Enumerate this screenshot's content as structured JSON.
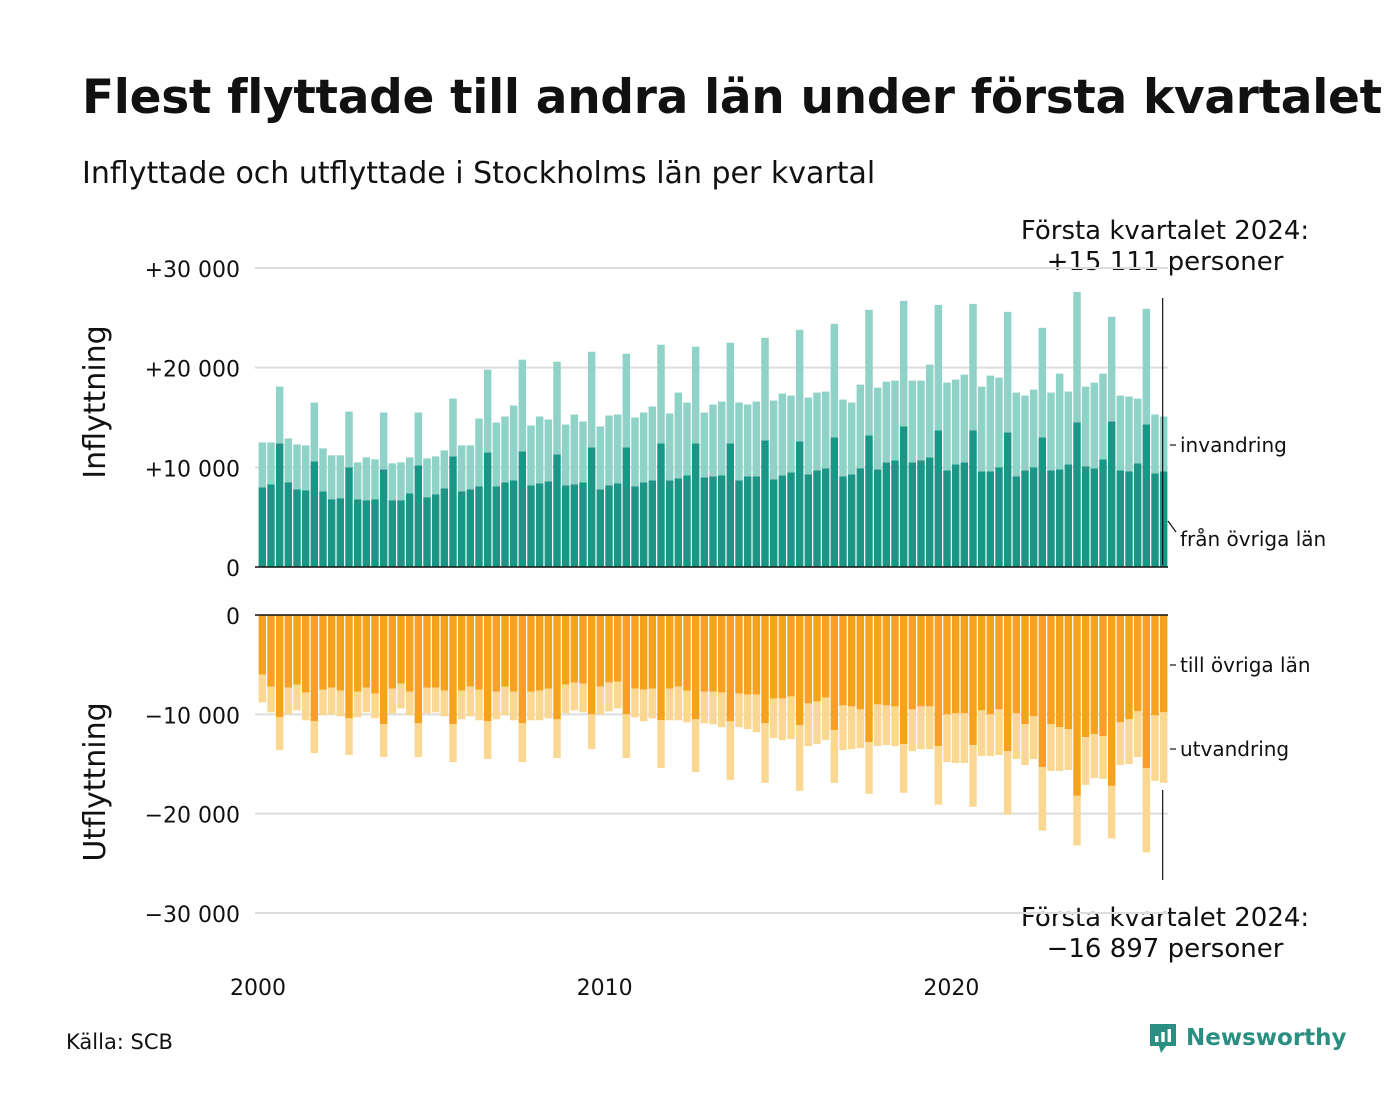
{
  "header": {
    "title": "Flest flyttade till andra län under första kvartalet",
    "subtitle": "Inflyttade och utflyttade i Stockholms län per kvartal"
  },
  "callouts": {
    "top_line1": "Första kvartalet 2024:",
    "top_line2": "+15 111 personer",
    "bottom_line1": "Första kvartalet 2024:",
    "bottom_line2": "−16 897 personer"
  },
  "footer": {
    "source": "Källa: SCB",
    "brand": "Newsworthy"
  },
  "colors": {
    "domestic_in": "#1a9586",
    "immigration": "#8fd3c8",
    "domestic_out": "#f6a21e",
    "emigration": "#fbd892",
    "grid": "#dddddd",
    "brand": "#2a8f82"
  },
  "icons": {
    "brand_logo": "newsworthy-logo-icon"
  },
  "chart_data": {
    "type": "bar",
    "stacked": true,
    "x_label": "",
    "x_ticks": [
      "2000",
      "2010",
      "2020"
    ],
    "x_range": [
      "2000 Q1",
      "2024 Q1"
    ],
    "grid": true,
    "panels": [
      {
        "name": "Inflyttning",
        "ylim": [
          0,
          30000
        ],
        "y_ticks": [
          0,
          10000,
          20000,
          30000
        ],
        "y_tick_labels": [
          "0",
          "+10 000",
          "+20 000",
          "+30 000"
        ],
        "end_labels": [
          "invandring",
          "från övriga län"
        ],
        "series": [
          {
            "name": "från övriga län",
            "color_key": "domestic_in",
            "values": [
              8000,
              8300,
              12400,
              8500,
              7800,
              7700,
              10600,
              7600,
              6800,
              6900,
              10000,
              6800,
              6700,
              6800,
              9800,
              6700,
              6700,
              7400,
              10200,
              7000,
              7300,
              7900,
              11100,
              7600,
              7800,
              8100,
              11500,
              8100,
              8500,
              8700,
              11600,
              8200,
              8400,
              8600,
              11300,
              8200,
              8300,
              8500,
              12000,
              7800,
              8200,
              8400,
              12000,
              8100,
              8500,
              8700,
              12400,
              8700,
              8900,
              9200,
              12400,
              9000,
              9100,
              9200,
              12400,
              8700,
              9100,
              9100,
              12700,
              8800,
              9200,
              9500,
              12600,
              9300,
              9700,
              9900,
              13000,
              9100,
              9300,
              9900,
              13200,
              9800,
              10500,
              10700,
              14100,
              10500,
              10700,
              11000,
              13700,
              9700,
              10300,
              10500,
              13700,
              9600,
              9600,
              10000,
              13500,
              9100,
              9700,
              10000,
              13000,
              9700,
              9800,
              10300,
              14500,
              10100,
              9900,
              10800,
              14600,
              9700,
              9600,
              10400,
              14300,
              9400,
              9600
            ],
            "annotation": "from 2000 Q1 to 2024 Q1 (about 97 quarters)"
          },
          {
            "name": "invandring",
            "color_key": "immigration",
            "values": [
              4500,
              4200,
              5700,
              4400,
              4500,
              4500,
              5900,
              4300,
              4400,
              4300,
              5600,
              3700,
              4300,
              4000,
              5700,
              3700,
              3800,
              3600,
              5300,
              3900,
              3800,
              3800,
              5800,
              4600,
              4400,
              6800,
              8300,
              6400,
              6600,
              7500,
              9200,
              6000,
              6700,
              6200,
              9300,
              6100,
              7000,
              6100,
              9600,
              6300,
              7000,
              6900,
              9400,
              6900,
              7000,
              7400,
              9900,
              6700,
              8600,
              7300,
              9700,
              6500,
              7200,
              7400,
              10100,
              7800,
              7200,
              7500,
              10300,
              7900,
              8200,
              7700,
              11200,
              7700,
              7800,
              7700,
              11400,
              7700,
              7200,
              8400,
              12600,
              8200,
              8100,
              8000,
              12600,
              8200,
              8000,
              9300,
              12600,
              8800,
              8500,
              8800,
              12700,
              8500,
              9600,
              9000,
              12100,
              8400,
              7500,
              7800,
              11000,
              7800,
              9600,
              7300,
              13100,
              8000,
              8600,
              8600,
              10500,
              7500,
              7500,
              6500,
              11600,
              5900,
              5500
            ],
            "annotation": "stacked on top of från övriga län"
          }
        ],
        "totals_note": "Första kvartalet 2024: +15 111"
      },
      {
        "name": "Utflyttning",
        "ylim": [
          -30000,
          0
        ],
        "y_ticks": [
          0,
          -10000,
          -20000,
          -30000
        ],
        "y_tick_labels": [
          "0",
          "−10 000",
          "−20 000",
          "−30 000"
        ],
        "end_labels": [
          "till övriga län",
          "utvandring"
        ],
        "series": [
          {
            "name": "till övriga län",
            "color_key": "domestic_out",
            "values": [
              -6000,
              -7200,
              -10300,
              -7300,
              -7000,
              -7800,
              -10700,
              -7500,
              -7300,
              -7600,
              -10400,
              -7700,
              -7300,
              -7900,
              -11000,
              -7400,
              -6900,
              -7700,
              -10900,
              -7300,
              -7300,
              -7600,
              -11000,
              -7600,
              -7200,
              -7500,
              -10700,
              -7700,
              -7200,
              -7700,
              -10900,
              -7700,
              -7600,
              -7400,
              -10500,
              -7000,
              -6800,
              -6900,
              -10000,
              -7200,
              -6800,
              -6700,
              -10000,
              -7400,
              -7500,
              -7400,
              -10600,
              -7400,
              -7200,
              -7600,
              -10500,
              -7700,
              -7700,
              -7800,
              -10700,
              -7900,
              -8000,
              -8000,
              -10900,
              -8400,
              -8400,
              -8200,
              -11100,
              -8900,
              -8700,
              -8300,
              -11600,
              -9100,
              -9200,
              -9500,
              -12800,
              -9000,
              -9100,
              -9200,
              -13000,
              -9500,
              -9200,
              -9200,
              -13200,
              -10000,
              -9900,
              -9900,
              -13100,
              -9600,
              -10000,
              -9500,
              -13700,
              -9900,
              -11000,
              -10200,
              -15300,
              -11000,
              -11300,
              -11500,
              -18200,
              -12300,
              -12000,
              -12200,
              -17200,
              -10800,
              -10500,
              -9700,
              -15400,
              -10100,
              -9800
            ],
            "annotation": "from 2000 Q1 to 2024 Q1"
          },
          {
            "name": "utvandring",
            "color_key": "emigration",
            "values": [
              -2800,
              -2600,
              -3300,
              -2700,
              -2600,
              -2800,
              -3200,
              -2600,
              -2700,
              -2600,
              -3700,
              -2600,
              -2500,
              -2500,
              -3300,
              -2500,
              -2500,
              -2400,
              -3400,
              -2600,
              -2500,
              -2600,
              -3800,
              -2900,
              -3000,
              -3100,
              -3800,
              -2800,
              -2900,
              -2900,
              -3900,
              -2900,
              -3000,
              -3000,
              -3900,
              -2900,
              -2800,
              -2900,
              -3500,
              -2800,
              -2900,
              -2700,
              -4400,
              -2900,
              -3200,
              -3000,
              -4800,
              -3200,
              -3400,
              -3200,
              -5300,
              -3200,
              -3300,
              -3500,
              -5900,
              -3400,
              -3500,
              -3800,
              -6000,
              -4000,
              -4200,
              -4300,
              -6600,
              -4300,
              -4300,
              -4300,
              -5300,
              -4500,
              -4300,
              -3900,
              -5200,
              -4200,
              -4000,
              -4000,
              -4900,
              -4200,
              -4300,
              -4300,
              -5900,
              -4800,
              -5000,
              -5000,
              -6200,
              -4600,
              -4200,
              -4600,
              -6400,
              -4600,
              -4100,
              -4300,
              -6400,
              -4700,
              -4400,
              -4100,
              -5000,
              -4800,
              -4400,
              -4300,
              -5300,
              -4300,
              -4500,
              -4600,
              -8500,
              -6600,
              -7100
            ],
            "annotation": "stacked below till övriga län"
          }
        ],
        "totals_note": "Första kvartalet 2024: −16 897"
      }
    ]
  }
}
